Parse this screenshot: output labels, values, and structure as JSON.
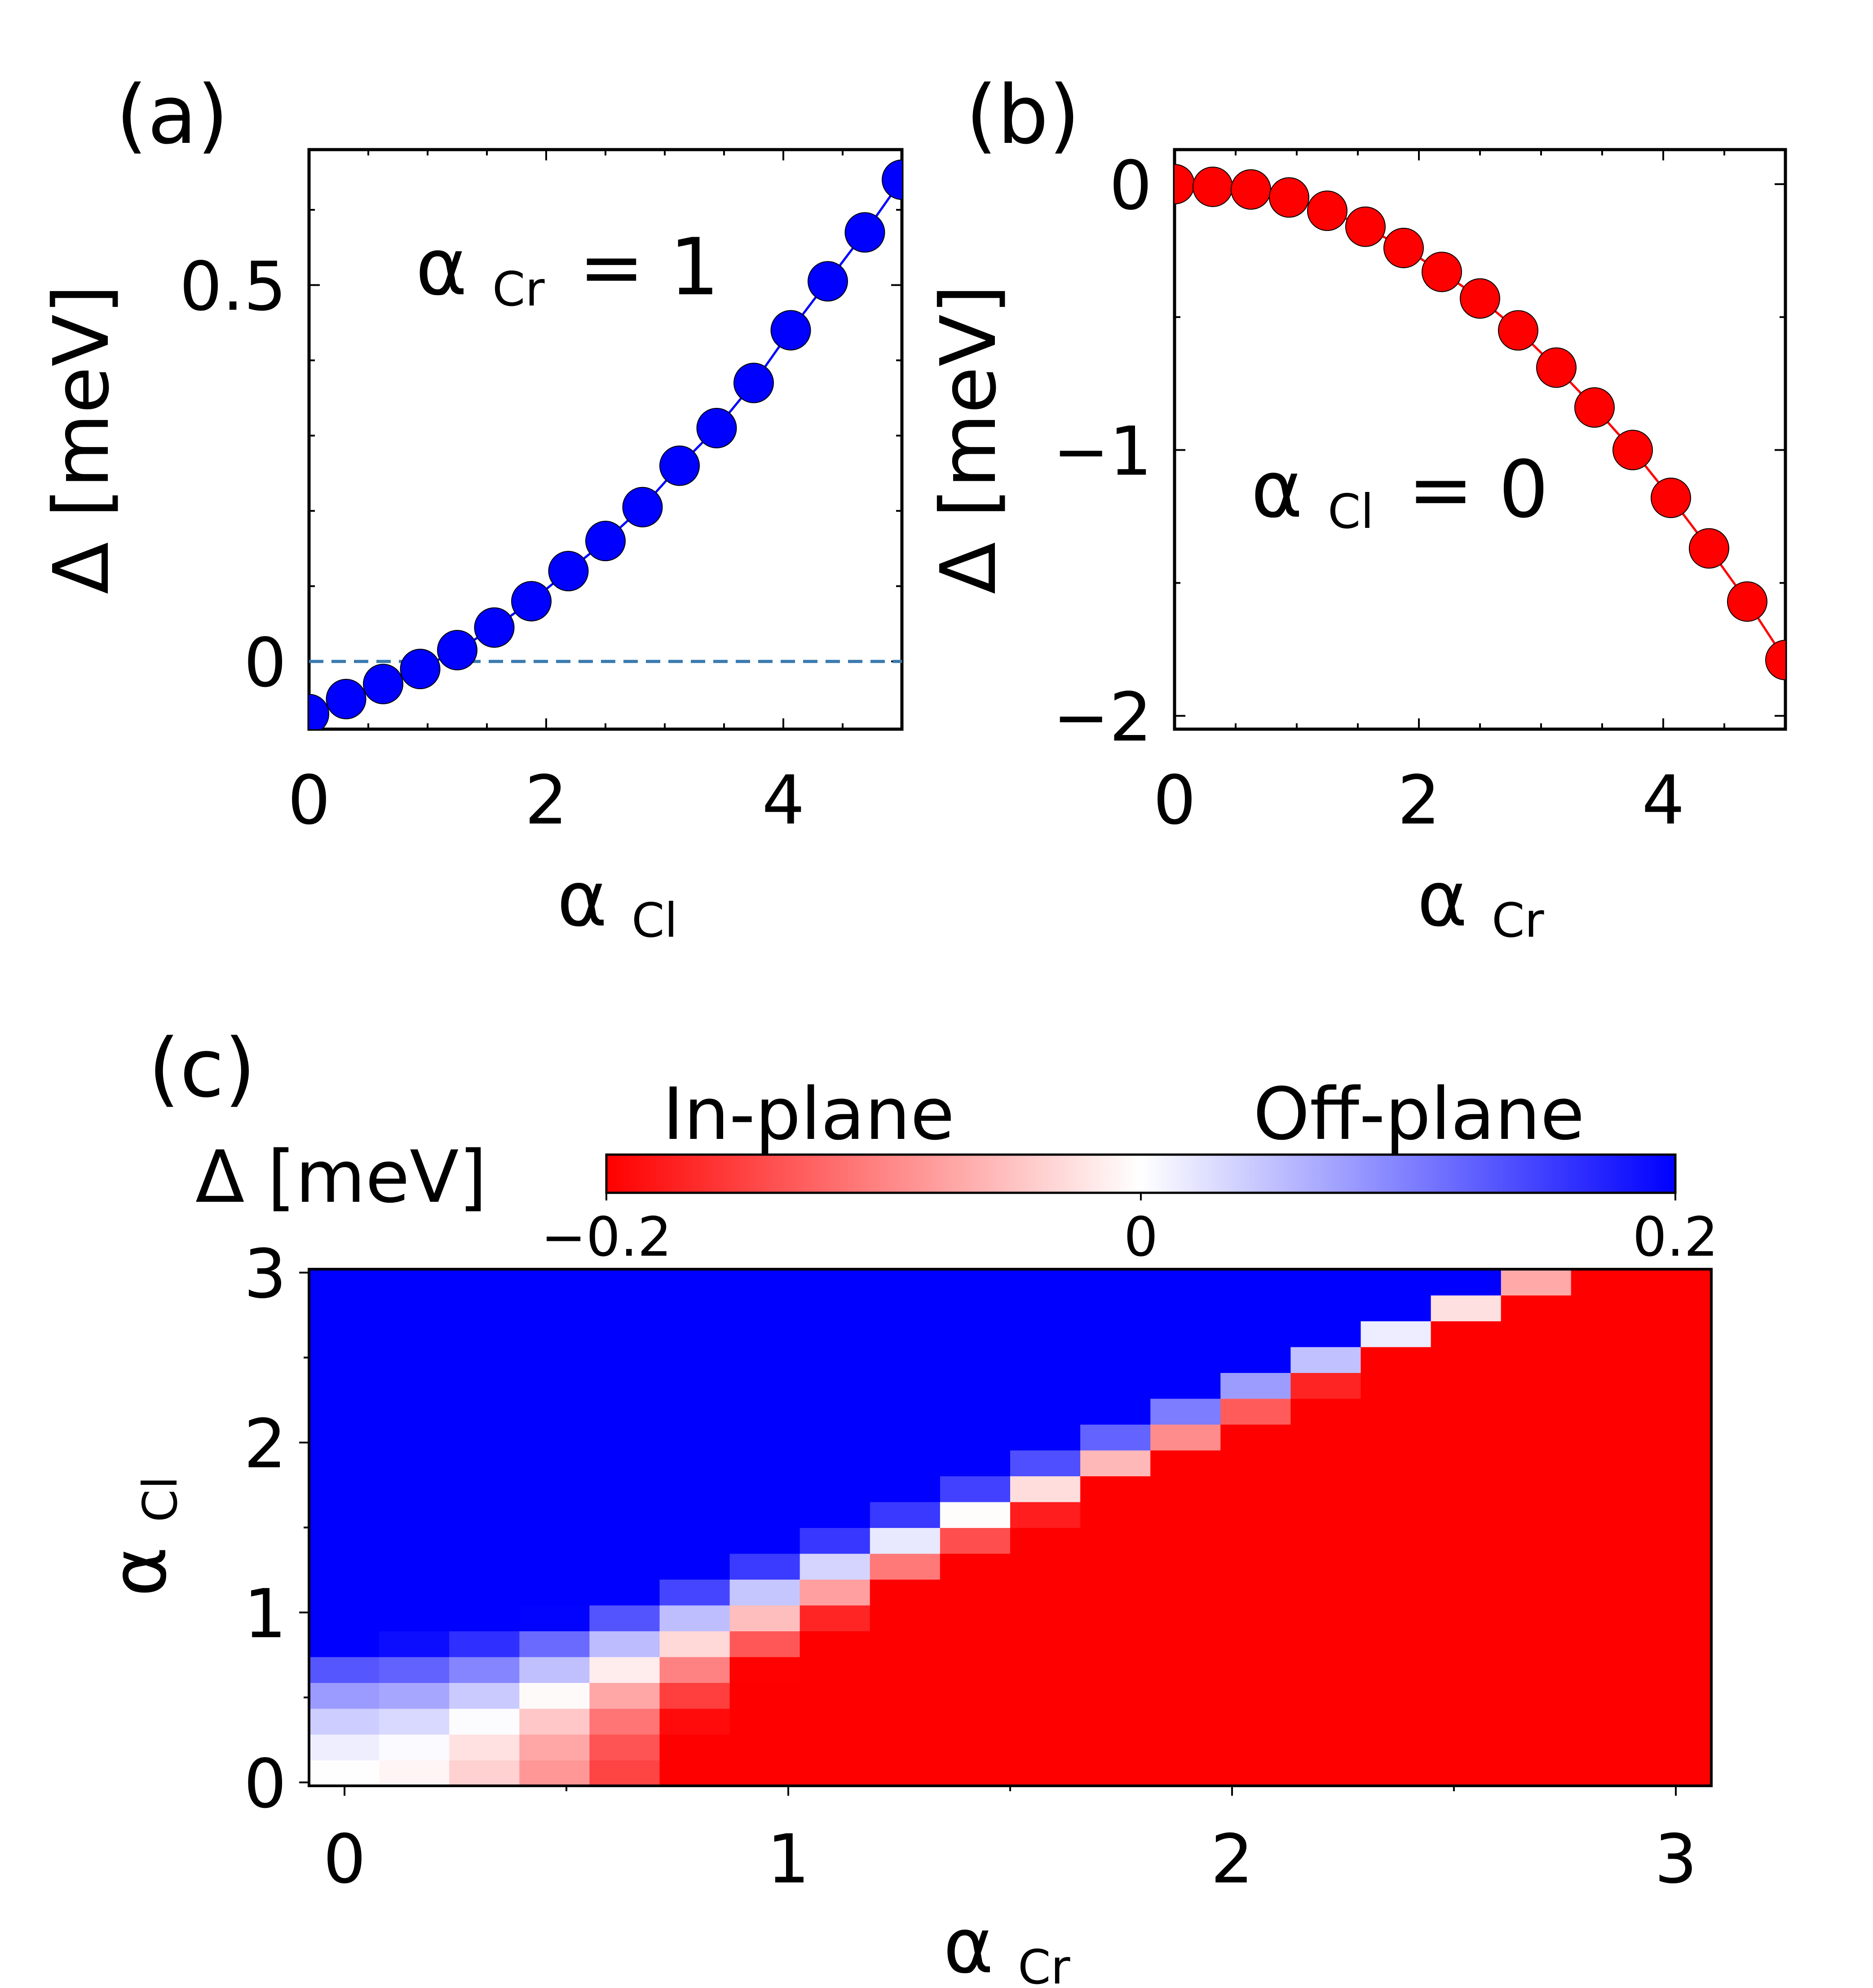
{
  "chart_data": [
    {
      "panel": "(a)",
      "type": "line",
      "xlabel": "α",
      "xlabel_sub": "Cl",
      "ylabel": "Δ [meV]",
      "annotation": {
        "symbol": "α",
        "sub": "Cr",
        "text": "= 1"
      },
      "xlim": [
        0,
        5
      ],
      "ylim": [
        -0.09,
        0.68
      ],
      "xticks": [
        0,
        2,
        4
      ],
      "xtick_labels": [
        "0",
        "2",
        "4"
      ],
      "yticks": [
        0,
        0.5
      ],
      "ytick_labels": [
        "0",
        "0.5"
      ],
      "reference_line": {
        "y": 0,
        "style": "dashed",
        "color": "#3a7ab0"
      },
      "series": [
        {
          "name": "alpha_Cr = 1",
          "color": "#0000ff",
          "x": [
            0,
            0.3125,
            0.625,
            0.9375,
            1.25,
            1.5625,
            1.875,
            2.1875,
            2.5,
            2.8125,
            3.125,
            3.4375,
            3.75,
            4.0625,
            4.375,
            4.6875,
            5
          ],
          "y": [
            -0.07,
            -0.05,
            -0.03,
            -0.01,
            0.015,
            0.045,
            0.08,
            0.12,
            0.16,
            0.205,
            0.26,
            0.31,
            0.37,
            0.44,
            0.505,
            0.57,
            0.64
          ]
        }
      ]
    },
    {
      "panel": "(b)",
      "type": "line",
      "xlabel": "α",
      "xlabel_sub": "Cr",
      "ylabel": "Δ [meV]",
      "annotation": {
        "symbol": "α",
        "sub": "Cl",
        "text": "= 0"
      },
      "xlim": [
        0,
        5
      ],
      "ylim": [
        -2.05,
        0.13
      ],
      "xticks": [
        0,
        2,
        4
      ],
      "xtick_labels": [
        "0",
        "2",
        "4"
      ],
      "yticks": [
        0,
        -1,
        -2
      ],
      "ytick_labels": [
        "0",
        "−1",
        "−2"
      ],
      "series": [
        {
          "name": "alpha_Cl = 0",
          "color": "#ff0000",
          "x": [
            0,
            0.3125,
            0.625,
            0.9375,
            1.25,
            1.5625,
            1.875,
            2.1875,
            2.5,
            2.8125,
            3.125,
            3.4375,
            3.75,
            4.0625,
            4.375,
            4.6875,
            5
          ],
          "y": [
            0,
            -0.01,
            -0.02,
            -0.05,
            -0.1,
            -0.16,
            -0.24,
            -0.33,
            -0.43,
            -0.55,
            -0.69,
            -0.84,
            -1.0,
            -1.18,
            -1.37,
            -1.57,
            -1.79
          ]
        }
      ]
    },
    {
      "panel": "(c)",
      "type": "heatmap",
      "xlabel": "α",
      "xlabel_sub": "Cr",
      "ylabel": "α",
      "ylabel_sub": "Cl",
      "xlim": [
        -0.08,
        3.08
      ],
      "ylim": [
        -0.02,
        3.02
      ],
      "xticks": [
        0,
        1,
        2,
        3
      ],
      "xtick_labels": [
        "0",
        "1",
        "2",
        "3"
      ],
      "yticks": [
        0,
        1,
        2,
        3
      ],
      "ytick_labels": [
        "0",
        "1",
        "2",
        "3"
      ],
      "grid": {
        "nx": 20,
        "ny": 20,
        "x_start": -0.08,
        "x_step": 0.158,
        "y_start": -0.02,
        "y_step": 0.152
      },
      "value_model": "delta = 0.2 * (0.3*y*y - 0.37*x*x) / 0.2",
      "colorbar": {
        "label": "Δ [meV]",
        "left_label": "In-plane",
        "right_label": "Off-plane",
        "vmin": -0.2,
        "vmax": 0.2,
        "ticks": [
          -0.2,
          0,
          0.2
        ],
        "tick_labels": [
          "−0.2",
          "0",
          "0.2"
        ],
        "cmap": [
          "#ff0000",
          "#ffffff",
          "#0000ff"
        ]
      }
    }
  ]
}
